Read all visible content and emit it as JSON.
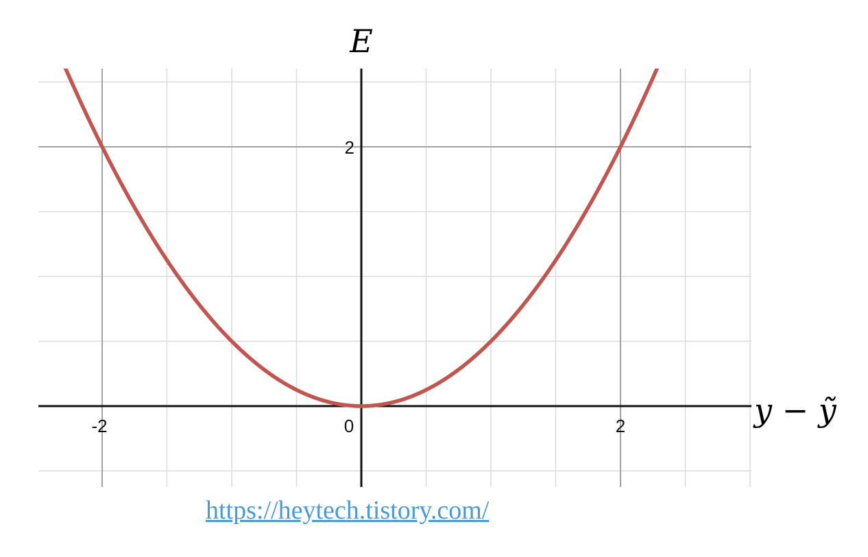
{
  "chart_data": {
    "type": "line",
    "title": "",
    "xlabel": "y − ỹ",
    "ylabel": "E",
    "xlim": [
      -2.5,
      3.0
    ],
    "ylim": [
      -0.6,
      2.6
    ],
    "x_ticks": [
      -2,
      0,
      2
    ],
    "x_tick_labels": [
      "-2",
      "0",
      "2"
    ],
    "y_ticks": [
      2
    ],
    "y_tick_labels": [
      "2"
    ],
    "grid": true,
    "series": [
      {
        "function": "E = 0.5 * (y - ỹ)^2",
        "color": "#c0564f",
        "x": [
          -2.5,
          -2.0,
          -1.5,
          -1.0,
          -0.5,
          0.0,
          0.5,
          1.0,
          1.5,
          2.0,
          2.28
        ],
        "y": [
          3.125,
          2.0,
          1.125,
          0.5,
          0.125,
          0.0,
          0.125,
          0.5,
          1.125,
          2.0,
          2.6
        ]
      }
    ]
  },
  "footer": {
    "link_text": "https://heytech.tistory.com/"
  }
}
